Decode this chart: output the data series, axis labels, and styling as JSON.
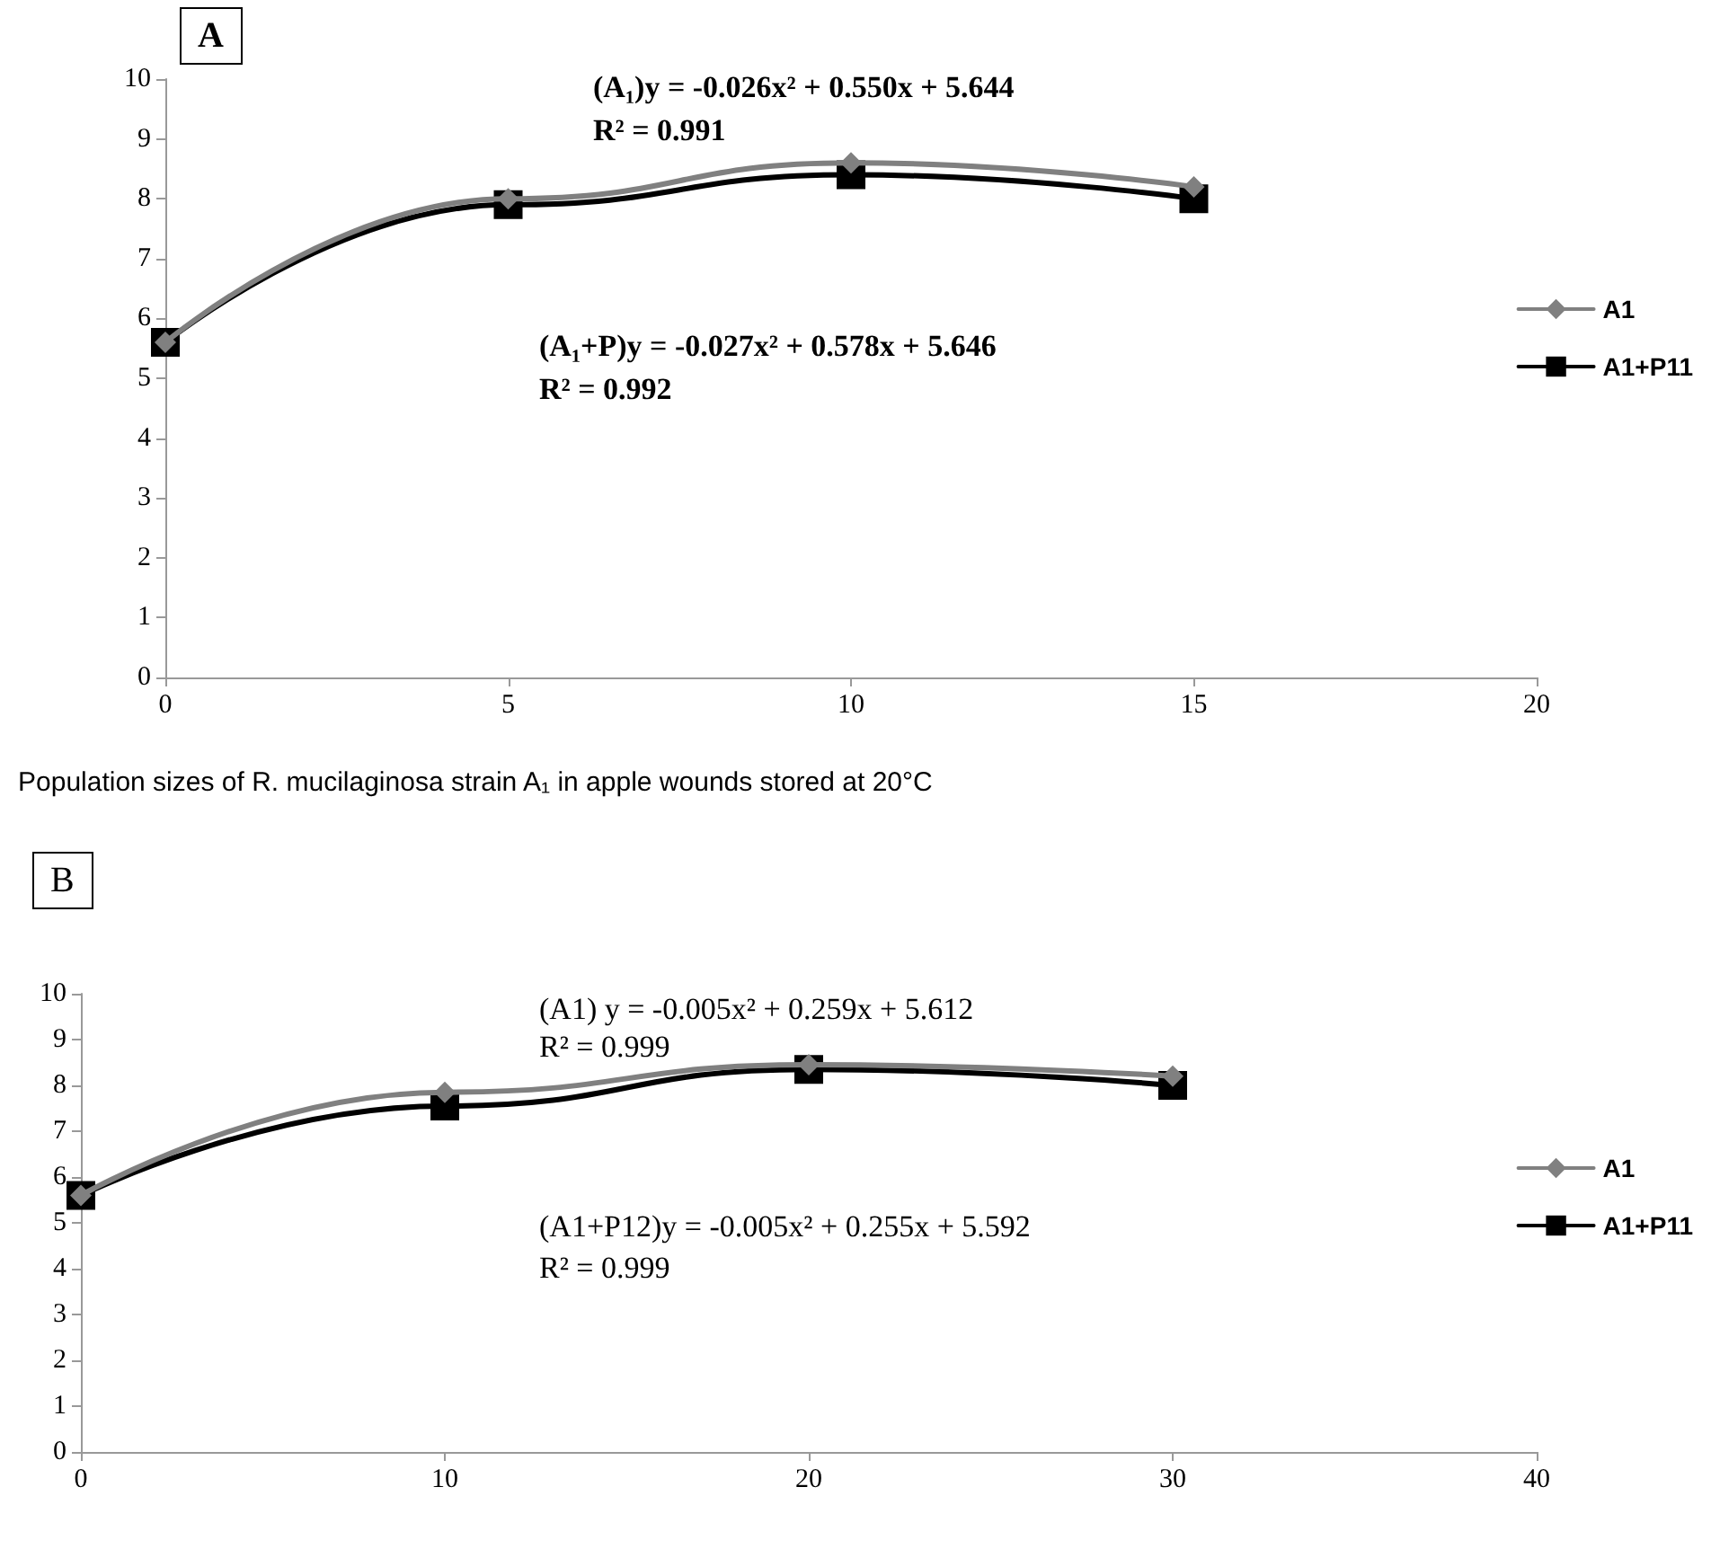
{
  "chart_data": [
    {
      "type": "line",
      "title": "A",
      "x": [
        0,
        5,
        10,
        15
      ],
      "xlim": [
        0,
        20
      ],
      "xticks": [
        0,
        5,
        10,
        15,
        20
      ],
      "ylim": [
        0,
        10
      ],
      "yticks": [
        0,
        1,
        2,
        3,
        4,
        5,
        6,
        7,
        8,
        9,
        10
      ],
      "grid": false,
      "legend": "right",
      "line_style": "solid",
      "series": [
        {
          "name": "A1",
          "color": "#808080",
          "marker": "diamond",
          "values": [
            5.6,
            8.0,
            8.6,
            8.2
          ]
        },
        {
          "name": "A1+P11",
          "color": "#000000",
          "marker": "square",
          "values": [
            5.6,
            7.9,
            8.4,
            8.0
          ]
        }
      ],
      "annotations": [
        "(A₁)y = -0.026x² + 0.550x + 5.644",
        "R² = 0.991",
        "(A₁+P)y = -0.027x² + 0.578x + 5.646",
        "R² = 0.992",
        "Population sizes of R. mucilaginosa strain A₁ in apple wounds stored at 20°C"
      ]
    },
    {
      "type": "line",
      "title": "B",
      "x": [
        0,
        10,
        20,
        30
      ],
      "xlim": [
        0,
        40
      ],
      "xticks": [
        0,
        10,
        20,
        30,
        40
      ],
      "ylim": [
        0,
        10
      ],
      "yticks": [
        0,
        1,
        2,
        3,
        4,
        5,
        6,
        7,
        8,
        9,
        10
      ],
      "grid": false,
      "legend": "right",
      "line_style": "solid",
      "series": [
        {
          "name": "A1",
          "color": "#808080",
          "marker": "diamond",
          "values": [
            5.6,
            7.85,
            8.45,
            8.2
          ]
        },
        {
          "name": "A1+P11",
          "color": "#000000",
          "marker": "square",
          "values": [
            5.6,
            7.55,
            8.35,
            8.0
          ]
        }
      ],
      "annotations": [
        "(A1) y = -0.005x² + 0.259x + 5.612",
        "R² = 0.999",
        "(A1+P12)y = -0.005x² + 0.255x + 5.592",
        "R² = 0.999"
      ]
    }
  ]
}
